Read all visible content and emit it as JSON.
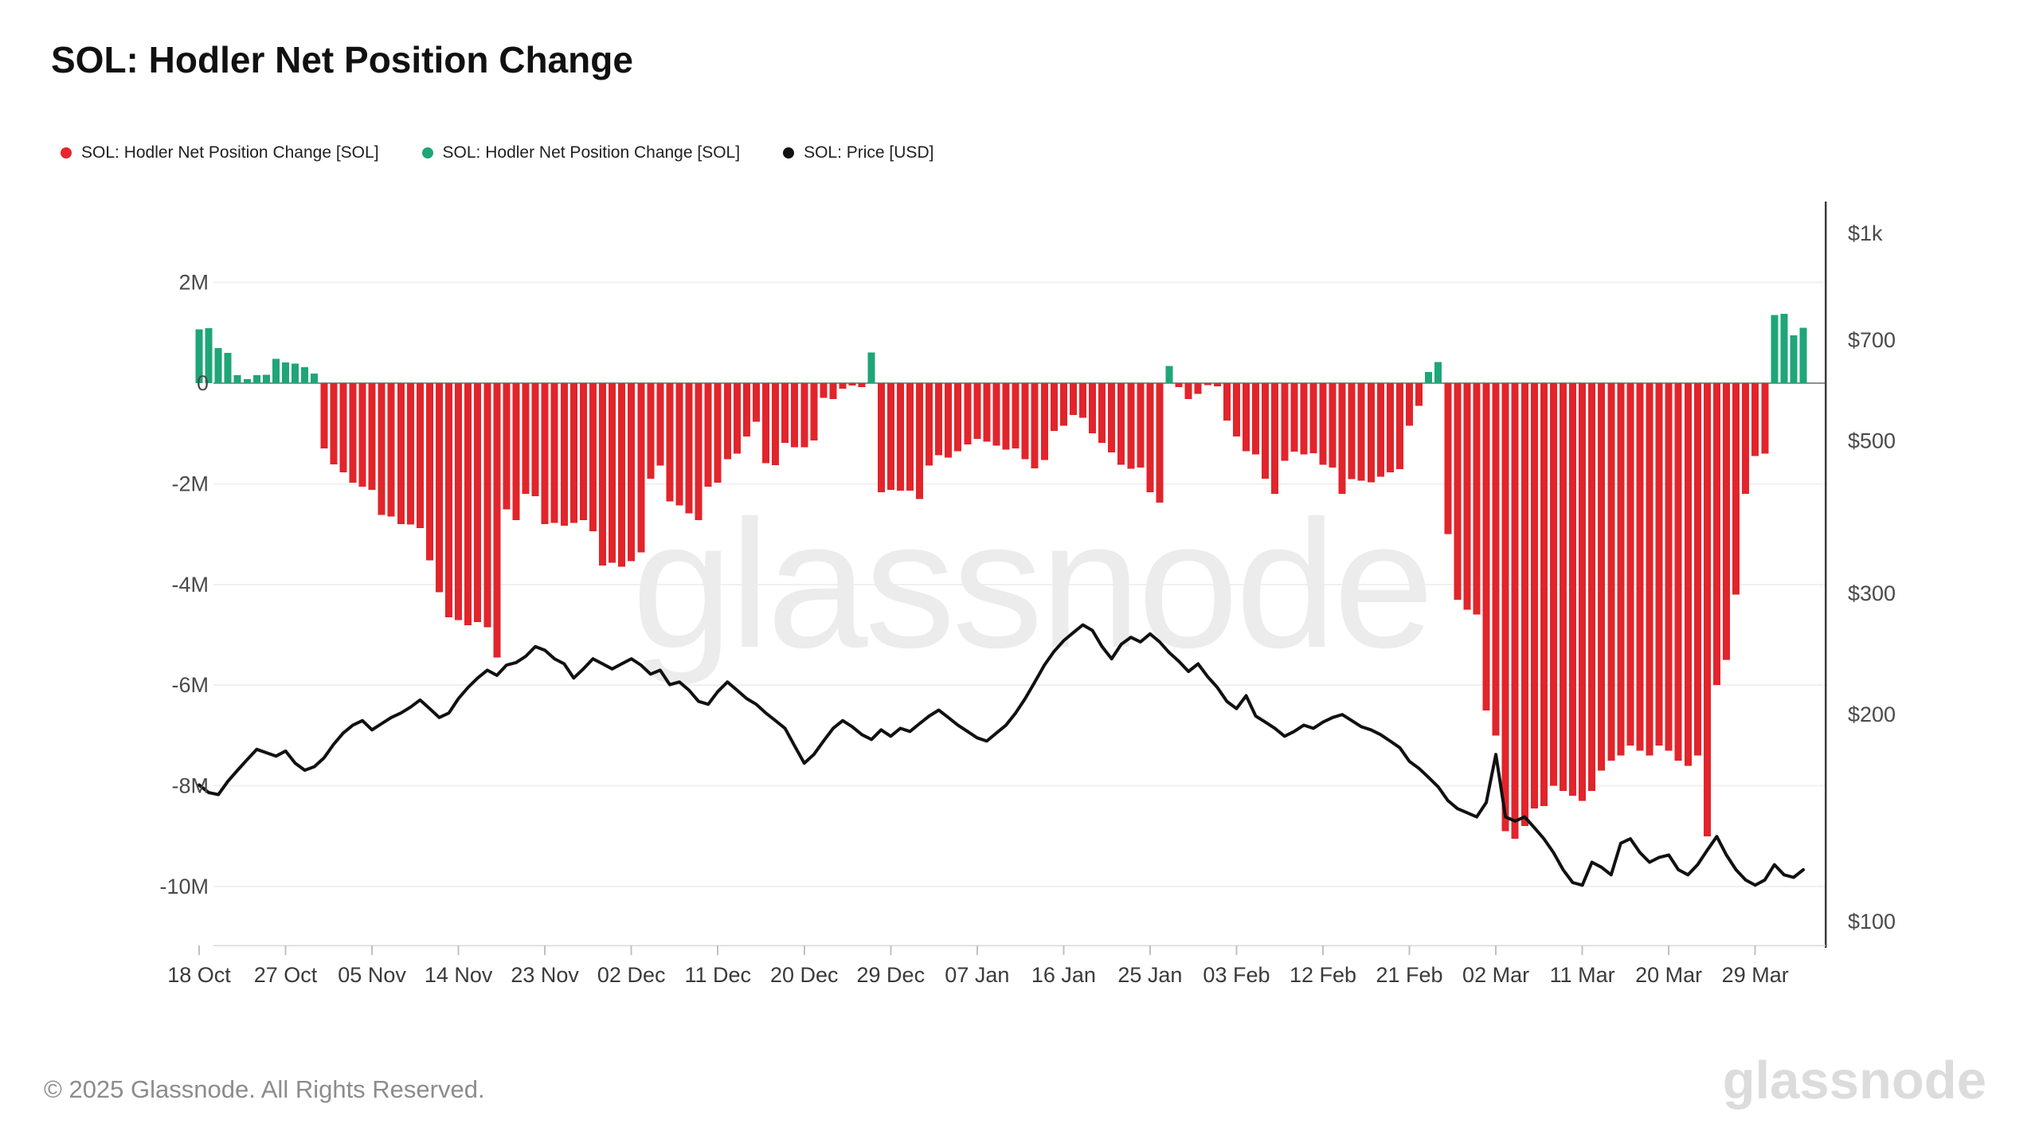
{
  "page": {
    "title": "SOL: Hodler Net Position Change",
    "footer": "© 2025 Glassnode. All Rights Reserved.",
    "brand_wordmark": "glassnode",
    "watermark": "glassnode"
  },
  "colors": {
    "positive_bar": "#1ea678",
    "negative_bar": "#e2242b",
    "price_line": "#111111",
    "grid": "#f0f0f0",
    "zero_line": "#8f8f8f",
    "axis_line": "#3c3c3c",
    "x_axis_line": "#d8d8d8",
    "tick": "#c0c0c0",
    "axis_text": "#4a4a4a",
    "watermark": "#ececec"
  },
  "legend": [
    {
      "label": "SOL: Hodler Net Position Change [SOL]",
      "color": "#e8252c"
    },
    {
      "label": "SOL: Hodler Net Position Change [SOL]",
      "color": "#1ea678"
    },
    {
      "label": "SOL: Price [USD]",
      "color": "#111111"
    }
  ],
  "chart_data": {
    "type": "bar+line",
    "frequency": "daily",
    "start_date": "2024-10-18",
    "end_date": "2025-04-03",
    "left_axis": {
      "title": "Hodler Net Position Change [SOL]",
      "scale": "linear",
      "tick_labels": [
        "2M",
        "0",
        "-2M",
        "-4M",
        "-6M",
        "-8M",
        "-10M"
      ],
      "tick_values_msol": [
        2,
        0,
        -2,
        -4,
        -6,
        -8,
        -10
      ],
      "range_msol": [
        -11.2,
        3.6
      ]
    },
    "right_axis": {
      "title": "Price [USD]",
      "scale": "log",
      "tick_labels": [
        "$1k",
        "$700",
        "$500",
        "$300",
        "$200",
        "$100"
      ],
      "tick_values_usd": [
        1000,
        700,
        500,
        300,
        200,
        100
      ]
    },
    "x_axis": {
      "tick_labels": [
        "18 Oct",
        "27 Oct",
        "05 Nov",
        "14 Nov",
        "23 Nov",
        "02 Dec",
        "11 Dec",
        "20 Dec",
        "29 Dec",
        "07 Jan",
        "16 Jan",
        "25 Jan",
        "03 Feb",
        "12 Feb",
        "21 Feb",
        "02 Mar",
        "11 Mar",
        "20 Mar",
        "29 Mar"
      ],
      "tick_every_n_days": 9
    },
    "series": [
      {
        "name": "SOL: Hodler Net Position Change [SOL]",
        "type": "bar",
        "axis": "left",
        "unit": "million SOL",
        "values_msol": [
          1.07,
          1.09,
          0.7,
          0.6,
          0.16,
          0.08,
          0.16,
          0.17,
          0.48,
          0.41,
          0.39,
          0.32,
          0.19,
          -1.3,
          -1.61,
          -1.77,
          -1.98,
          -2.06,
          -2.12,
          -2.62,
          -2.65,
          -2.8,
          -2.81,
          -2.88,
          -3.52,
          -4.15,
          -4.65,
          -4.71,
          -4.81,
          -4.75,
          -4.85,
          -5.45,
          -2.51,
          -2.72,
          -2.2,
          -2.25,
          -2.8,
          -2.78,
          -2.83,
          -2.78,
          -2.72,
          -2.94,
          -3.62,
          -3.57,
          -3.65,
          -3.54,
          -3.36,
          -1.9,
          -1.64,
          -2.35,
          -2.43,
          -2.59,
          -2.72,
          -2.06,
          -1.98,
          -1.51,
          -1.4,
          -1.06,
          -0.77,
          -1.59,
          -1.63,
          -1.19,
          -1.27,
          -1.27,
          -1.14,
          -0.29,
          -0.32,
          -0.11,
          -0.05,
          -0.08,
          0.61,
          -2.17,
          -2.12,
          -2.14,
          -2.14,
          -2.3,
          -1.64,
          -1.43,
          -1.48,
          -1.35,
          -1.22,
          -1.11,
          -1.16,
          -1.24,
          -1.32,
          -1.3,
          -1.51,
          -1.69,
          -1.53,
          -0.95,
          -0.85,
          -0.63,
          -0.69,
          -1.0,
          -1.19,
          -1.38,
          -1.62,
          -1.7,
          -1.68,
          -2.17,
          -2.37,
          0.34,
          -0.08,
          -0.32,
          -0.21,
          -0.04,
          -0.06,
          -0.74,
          -1.06,
          -1.35,
          -1.42,
          -1.9,
          -2.2,
          -1.54,
          -1.36,
          -1.42,
          -1.39,
          -1.62,
          -1.68,
          -2.2,
          -1.91,
          -1.94,
          -1.97,
          -1.86,
          -1.77,
          -1.71,
          -0.85,
          -0.45,
          0.22,
          0.42,
          -3.0,
          -4.3,
          -4.5,
          -4.6,
          -6.5,
          -7.0,
          -8.9,
          -9.05,
          -8.8,
          -8.45,
          -8.4,
          -8.0,
          -8.1,
          -8.2,
          -8.3,
          -8.1,
          -7.7,
          -7.5,
          -7.4,
          -7.2,
          -7.3,
          -7.4,
          -7.2,
          -7.3,
          -7.5,
          -7.6,
          -7.4,
          -9.0,
          -6.0,
          -5.5,
          -4.2,
          -2.2,
          -1.45,
          -1.4,
          1.35,
          1.38,
          0.95,
          1.1
        ]
      },
      {
        "name": "SOL: Price [USD]",
        "type": "line",
        "axis": "right",
        "unit": "USD",
        "values_usd": [
          158,
          154,
          153,
          160,
          166,
          172,
          178,
          176,
          174,
          177,
          170,
          166,
          168,
          173,
          181,
          188,
          193,
          196,
          190,
          194,
          198,
          201,
          205,
          210,
          204,
          198,
          201,
          211,
          219,
          226,
          232,
          228,
          236,
          238,
          243,
          251,
          248,
          241,
          237,
          226,
          233,
          241,
          237,
          233,
          237,
          241,
          236,
          229,
          232,
          221,
          223,
          217,
          209,
          207,
          216,
          223,
          217,
          211,
          207,
          201,
          196,
          191,
          180,
          170,
          175,
          183,
          191,
          196,
          192,
          187,
          184,
          190,
          186,
          191,
          189,
          194,
          199,
          203,
          198,
          193,
          189,
          185,
          183,
          188,
          193,
          201,
          211,
          223,
          236,
          247,
          256,
          263,
          270,
          265,
          251,
          241,
          253,
          259,
          255,
          262,
          255,
          246,
          239,
          231,
          237,
          227,
          219,
          209,
          204,
          213,
          199,
          195,
          191,
          186,
          189,
          193,
          191,
          195,
          198,
          200,
          196,
          192,
          190,
          187,
          183,
          179,
          171,
          167,
          162,
          157,
          150,
          146,
          144,
          142,
          149,
          175,
          142,
          140,
          142,
          137,
          132,
          126,
          119,
          114,
          113,
          122,
          120,
          117,
          130,
          132,
          126,
          122,
          124,
          125,
          119,
          117,
          121,
          127,
          133,
          125,
          119,
          115,
          113,
          115,
          121,
          117,
          116,
          119
        ]
      }
    ]
  }
}
